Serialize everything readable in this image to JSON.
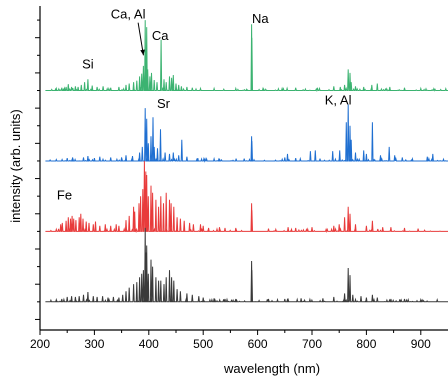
{
  "chart_data": {
    "type": "line",
    "title": "",
    "xlabel": "wavelength (nm)",
    "ylabel": "intensity (arb. units)",
    "xlim": [
      200,
      950
    ],
    "xticks": [
      200,
      300,
      400,
      500,
      600,
      700,
      800,
      900
    ],
    "ytick_labels": false,
    "grid": false,
    "legend": "none",
    "series": [
      {
        "color": "#3cb371",
        "offset": 3,
        "peaks": [
          [
            230,
            0.03
          ],
          [
            240,
            0.04
          ],
          [
            248,
            0.05
          ],
          [
            252,
            0.09
          ],
          [
            258,
            0.05
          ],
          [
            265,
            0.06
          ],
          [
            270,
            0.05
          ],
          [
            276,
            0.08
          ],
          [
            282,
            0.12
          ],
          [
            288,
            0.16
          ],
          [
            296,
            0.07
          ],
          [
            305,
            0.05
          ],
          [
            316,
            0.06
          ],
          [
            330,
            0.04
          ],
          [
            345,
            0.05
          ],
          [
            358,
            0.08
          ],
          [
            364,
            0.1
          ],
          [
            372,
            0.12
          ],
          [
            378,
            0.14
          ],
          [
            383,
            0.2
          ],
          [
            387,
            0.24
          ],
          [
            390,
            0.35
          ],
          [
            393.4,
            1.0
          ],
          [
            394.4,
            0.45
          ],
          [
            396.2,
            0.9
          ],
          [
            398,
            0.3
          ],
          [
            402,
            0.2
          ],
          [
            405,
            0.25
          ],
          [
            410,
            0.15
          ],
          [
            415,
            0.12
          ],
          [
            422.7,
            0.72
          ],
          [
            428,
            0.16
          ],
          [
            432,
            0.12
          ],
          [
            438,
            0.2
          ],
          [
            442,
            0.18
          ],
          [
            445,
            0.22
          ],
          [
            450,
            0.1
          ],
          [
            455,
            0.08
          ],
          [
            460,
            0.06
          ],
          [
            470,
            0.05
          ],
          [
            480,
            0.04
          ],
          [
            495,
            0.03
          ],
          [
            520,
            0.03
          ],
          [
            560,
            0.03
          ],
          [
            588.9,
            0.94
          ],
          [
            589.6,
            0.75
          ],
          [
            610,
            0.03
          ],
          [
            645,
            0.03
          ],
          [
            670,
            0.04
          ],
          [
            710,
            0.04
          ],
          [
            740,
            0.06
          ],
          [
            752,
            0.05
          ],
          [
            760,
            0.08
          ],
          [
            766.5,
            0.3
          ],
          [
            769.9,
            0.25
          ],
          [
            772,
            0.12
          ],
          [
            780,
            0.06
          ],
          [
            795,
            0.05
          ],
          [
            810,
            0.08
          ],
          [
            820,
            0.1
          ],
          [
            843,
            0.05
          ],
          [
            870,
            0.04
          ],
          [
            900,
            0.03
          ]
        ]
      },
      {
        "color": "#1f6fd1",
        "offset": 2,
        "peaks": [
          [
            230,
            0.02
          ],
          [
            250,
            0.04
          ],
          [
            260,
            0.05
          ],
          [
            280,
            0.05
          ],
          [
            288,
            0.07
          ],
          [
            300,
            0.04
          ],
          [
            310,
            0.06
          ],
          [
            330,
            0.05
          ],
          [
            350,
            0.05
          ],
          [
            358,
            0.08
          ],
          [
            370,
            0.07
          ],
          [
            383,
            0.12
          ],
          [
            388,
            0.2
          ],
          [
            393.4,
            0.75
          ],
          [
            396.2,
            0.6
          ],
          [
            399,
            0.25
          ],
          [
            404,
            0.35
          ],
          [
            407.8,
            0.62
          ],
          [
            410,
            0.2
          ],
          [
            416,
            0.18
          ],
          [
            421.5,
            0.45
          ],
          [
            430,
            0.12
          ],
          [
            438,
            0.1
          ],
          [
            445,
            0.12
          ],
          [
            455,
            0.08
          ],
          [
            460.7,
            0.3
          ],
          [
            470,
            0.06
          ],
          [
            490,
            0.04
          ],
          [
            520,
            0.03
          ],
          [
            588.9,
            0.35
          ],
          [
            589.6,
            0.28
          ],
          [
            650,
            0.05
          ],
          [
            655,
            0.1
          ],
          [
            670,
            0.04
          ],
          [
            697,
            0.14
          ],
          [
            706,
            0.15
          ],
          [
            738,
            0.14
          ],
          [
            751,
            0.15
          ],
          [
            763,
            0.55
          ],
          [
            766.5,
            0.8
          ],
          [
            769.9,
            0.5
          ],
          [
            772,
            0.3
          ],
          [
            780,
            0.12
          ],
          [
            795,
            0.15
          ],
          [
            800,
            0.1
          ],
          [
            811,
            0.55
          ],
          [
            826,
            0.08
          ],
          [
            842,
            0.2
          ],
          [
            852,
            0.08
          ],
          [
            866,
            0.05
          ],
          [
            912,
            0.06
          ],
          [
            922,
            0.1
          ]
        ]
      },
      {
        "color": "#e83b3b",
        "offset": 1,
        "peaks": [
          [
            230,
            0.03
          ],
          [
            238,
            0.1
          ],
          [
            241,
            0.12
          ],
          [
            248,
            0.15
          ],
          [
            252,
            0.2
          ],
          [
            256,
            0.18
          ],
          [
            259,
            0.22
          ],
          [
            262,
            0.18
          ],
          [
            266,
            0.16
          ],
          [
            272,
            0.2
          ],
          [
            275,
            0.25
          ],
          [
            279,
            0.18
          ],
          [
            285,
            0.14
          ],
          [
            290,
            0.12
          ],
          [
            298,
            0.1
          ],
          [
            302,
            0.14
          ],
          [
            310,
            0.08
          ],
          [
            320,
            0.1
          ],
          [
            330,
            0.08
          ],
          [
            340,
            0.1
          ],
          [
            345,
            0.08
          ],
          [
            358,
            0.16
          ],
          [
            364,
            0.22
          ],
          [
            372,
            0.35
          ],
          [
            374,
            0.28
          ],
          [
            382,
            0.4
          ],
          [
            385,
            0.5
          ],
          [
            389,
            0.6
          ],
          [
            392,
            1.0
          ],
          [
            394.4,
            0.85
          ],
          [
            396.2,
            0.8
          ],
          [
            399,
            0.5
          ],
          [
            404,
            0.65
          ],
          [
            407,
            0.55
          ],
          [
            413,
            0.45
          ],
          [
            418,
            0.35
          ],
          [
            422,
            0.5
          ],
          [
            427,
            0.4
          ],
          [
            432,
            0.55
          ],
          [
            438,
            0.45
          ],
          [
            441,
            0.4
          ],
          [
            446,
            0.35
          ],
          [
            452,
            0.2
          ],
          [
            458,
            0.18
          ],
          [
            465,
            0.15
          ],
          [
            475,
            0.12
          ],
          [
            482,
            0.1
          ],
          [
            495,
            0.1
          ],
          [
            500,
            0.08
          ],
          [
            510,
            0.05
          ],
          [
            530,
            0.06
          ],
          [
            540,
            0.05
          ],
          [
            560,
            0.05
          ],
          [
            588.9,
            0.4
          ],
          [
            589.6,
            0.3
          ],
          [
            620,
            0.04
          ],
          [
            656,
            0.06
          ],
          [
            670,
            0.05
          ],
          [
            700,
            0.06
          ],
          [
            740,
            0.08
          ],
          [
            750,
            0.1
          ],
          [
            760,
            0.2
          ],
          [
            766.5,
            0.35
          ],
          [
            769.9,
            0.25
          ],
          [
            780,
            0.1
          ],
          [
            800,
            0.08
          ],
          [
            811,
            0.15
          ],
          [
            830,
            0.06
          ],
          [
            845,
            0.06
          ],
          [
            870,
            0.05
          ],
          [
            895,
            0.04
          ]
        ]
      },
      {
        "color": "#3a3a3a",
        "offset": 0,
        "peaks": [
          [
            230,
            0.03
          ],
          [
            240,
            0.04
          ],
          [
            250,
            0.07
          ],
          [
            258,
            0.08
          ],
          [
            265,
            0.07
          ],
          [
            272,
            0.08
          ],
          [
            280,
            0.1
          ],
          [
            288,
            0.14
          ],
          [
            298,
            0.08
          ],
          [
            305,
            0.07
          ],
          [
            315,
            0.08
          ],
          [
            325,
            0.06
          ],
          [
            335,
            0.07
          ],
          [
            345,
            0.06
          ],
          [
            352,
            0.1
          ],
          [
            358,
            0.15
          ],
          [
            364,
            0.2
          ],
          [
            372,
            0.25
          ],
          [
            378,
            0.28
          ],
          [
            383,
            0.35
          ],
          [
            387,
            0.4
          ],
          [
            390,
            0.45
          ],
          [
            393.4,
            1.05
          ],
          [
            394.4,
            0.7
          ],
          [
            396.2,
            0.8
          ],
          [
            399,
            0.4
          ],
          [
            404,
            0.6
          ],
          [
            407,
            0.5
          ],
          [
            413,
            0.35
          ],
          [
            418,
            0.3
          ],
          [
            422,
            0.3
          ],
          [
            428,
            0.25
          ],
          [
            432,
            0.35
          ],
          [
            438,
            0.45
          ],
          [
            442,
            0.35
          ],
          [
            446,
            0.3
          ],
          [
            452,
            0.18
          ],
          [
            458,
            0.15
          ],
          [
            470,
            0.12
          ],
          [
            480,
            0.1
          ],
          [
            492,
            0.08
          ],
          [
            500,
            0.06
          ],
          [
            520,
            0.05
          ],
          [
            540,
            0.04
          ],
          [
            560,
            0.04
          ],
          [
            588.9,
            0.58
          ],
          [
            589.6,
            0.45
          ],
          [
            620,
            0.04
          ],
          [
            650,
            0.04
          ],
          [
            680,
            0.05
          ],
          [
            720,
            0.05
          ],
          [
            740,
            0.07
          ],
          [
            760,
            0.12
          ],
          [
            766.5,
            0.48
          ],
          [
            769.9,
            0.38
          ],
          [
            775,
            0.1
          ],
          [
            790,
            0.08
          ],
          [
            800,
            0.06
          ],
          [
            811,
            0.1
          ],
          [
            820,
            0.06
          ],
          [
            845,
            0.04
          ],
          [
            870,
            0.04
          ],
          [
            900,
            0.03
          ]
        ]
      }
    ],
    "annotations": [
      {
        "text": "Ca, Al",
        "x": 362,
        "y": 4.02,
        "arrow_to": [
          392,
          3.5
        ]
      },
      {
        "text": "Ca",
        "x": 421,
        "y": 3.72
      },
      {
        "text": "Na",
        "x": 605,
        "y": 3.96
      },
      {
        "text": "Si",
        "x": 288,
        "y": 3.31
      },
      {
        "text": "Sr",
        "x": 427,
        "y": 2.75
      },
      {
        "text": "K, Al",
        "x": 748,
        "y": 2.8
      },
      {
        "text": "Fe",
        "x": 245,
        "y": 1.45
      }
    ]
  }
}
